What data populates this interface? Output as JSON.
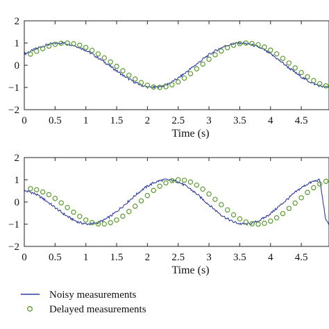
{
  "chart_data": [
    {
      "type": "line",
      "xlabel": "Time (s)",
      "ylabel": "",
      "xlim": [
        0,
        4.95
      ],
      "ylim": [
        -2,
        2
      ],
      "xticks": [
        0,
        0.5,
        1,
        1.5,
        2,
        2.5,
        3,
        3.5,
        4,
        4.5
      ],
      "xtick_labels": [
        "0",
        "0.5",
        "1",
        "1.5",
        "2",
        "2.5",
        "3",
        "3.5",
        "4",
        "4.5"
      ],
      "yticks": [
        -2,
        -1,
        0,
        1,
        2
      ],
      "ytick_labels": [
        "−2",
        "−1",
        "0",
        "1",
        "2"
      ],
      "grid": false,
      "series": [
        {
          "name": "Noisy measurements",
          "style": "line",
          "color": "#2b3a9e",
          "x": [
            0,
            0.1,
            0.2,
            0.3,
            0.4,
            0.5,
            0.6,
            0.7,
            0.8,
            0.9,
            1.0,
            1.1,
            1.2,
            1.3,
            1.4,
            1.5,
            1.6,
            1.7,
            1.8,
            1.9,
            2.0,
            2.1,
            2.2,
            2.3,
            2.4,
            2.5,
            2.6,
            2.7,
            2.8,
            2.9,
            3.0,
            3.1,
            3.2,
            3.3,
            3.4,
            3.5,
            3.6,
            3.7,
            3.8,
            3.9,
            4.0,
            4.1,
            4.2,
            4.3,
            4.4,
            4.5,
            4.6,
            4.7,
            4.8,
            4.9,
            4.95
          ],
          "y": [
            0.5,
            0.63,
            0.75,
            0.86,
            0.94,
            0.99,
            1.0,
            0.97,
            0.9,
            0.8,
            0.67,
            0.51,
            0.33,
            0.15,
            -0.05,
            -0.25,
            -0.45,
            -0.62,
            -0.78,
            -0.9,
            -0.98,
            -1.0,
            -0.97,
            -0.88,
            -0.75,
            -0.58,
            -0.38,
            -0.16,
            0.05,
            0.27,
            0.47,
            0.64,
            0.79,
            0.9,
            0.97,
            1.0,
            0.98,
            0.92,
            0.82,
            0.68,
            0.51,
            0.31,
            0.1,
            -0.12,
            -0.33,
            -0.52,
            -0.69,
            -0.83,
            -0.93,
            -0.99,
            -1.0
          ]
        },
        {
          "name": "Delayed measurements",
          "style": "markers",
          "color": "#5a9a2e",
          "x": [
            0.1,
            0.2,
            0.3,
            0.4,
            0.5,
            0.6,
            0.7,
            0.8,
            0.9,
            1.0,
            1.1,
            1.2,
            1.3,
            1.4,
            1.5,
            1.6,
            1.7,
            1.8,
            1.9,
            2.0,
            2.1,
            2.2,
            2.3,
            2.4,
            2.5,
            2.6,
            2.7,
            2.8,
            2.9,
            3.0,
            3.1,
            3.2,
            3.3,
            3.4,
            3.5,
            3.6,
            3.7,
            3.8,
            3.9,
            4.0,
            4.1,
            4.2,
            4.3,
            4.4,
            4.5,
            4.6,
            4.7,
            4.8,
            4.9
          ],
          "y": [
            0.5,
            0.63,
            0.75,
            0.86,
            0.94,
            0.99,
            1.0,
            0.97,
            0.9,
            0.8,
            0.67,
            0.51,
            0.33,
            0.15,
            -0.05,
            -0.25,
            -0.45,
            -0.62,
            -0.78,
            -0.9,
            -0.98,
            -1.0,
            -0.97,
            -0.88,
            -0.75,
            -0.58,
            -0.38,
            -0.16,
            0.05,
            0.27,
            0.47,
            0.64,
            0.79,
            0.9,
            0.97,
            1.0,
            0.98,
            0.92,
            0.82,
            0.68,
            0.51,
            0.31,
            0.1,
            -0.12,
            -0.33,
            -0.52,
            -0.69,
            -0.83,
            -0.93
          ]
        }
      ]
    },
    {
      "type": "line",
      "xlabel": "Time (s)",
      "ylabel": "",
      "xlim": [
        0,
        4.95
      ],
      "ylim": [
        -2,
        2
      ],
      "xticks": [
        0,
        0.5,
        1,
        1.5,
        2,
        2.5,
        3,
        3.5,
        4,
        4.5
      ],
      "xtick_labels": [
        "0",
        "0.5",
        "1",
        "1.5",
        "2",
        "2.5",
        "3",
        "3.5",
        "4",
        "4.5"
      ],
      "yticks": [
        -2,
        -1,
        0,
        1,
        2
      ],
      "ytick_labels": [
        "−2",
        "−1",
        "0",
        "1",
        "2"
      ],
      "grid": false,
      "series": [
        {
          "name": "Noisy measurements",
          "style": "line",
          "color": "#2b3a9e",
          "x": [
            0,
            0.1,
            0.2,
            0.3,
            0.4,
            0.5,
            0.6,
            0.7,
            0.8,
            0.9,
            1.0,
            1.1,
            1.2,
            1.3,
            1.4,
            1.5,
            1.6,
            1.7,
            1.8,
            1.9,
            2.0,
            2.1,
            2.2,
            2.3,
            2.4,
            2.5,
            2.6,
            2.7,
            2.8,
            2.9,
            3.0,
            3.1,
            3.2,
            3.3,
            3.4,
            3.5,
            3.6,
            3.7,
            3.8,
            3.9,
            4.0,
            4.1,
            4.2,
            4.3,
            4.4,
            4.5,
            4.6,
            4.7,
            4.8,
            4.9,
            4.95
          ],
          "y": [
            0.5,
            0.45,
            0.33,
            0.16,
            -0.04,
            -0.25,
            -0.46,
            -0.65,
            -0.81,
            -0.93,
            -0.99,
            -0.99,
            -0.93,
            -0.81,
            -0.64,
            -0.43,
            -0.19,
            0.05,
            0.29,
            0.52,
            0.71,
            0.86,
            0.96,
            1.0,
            0.98,
            0.9,
            0.76,
            0.58,
            0.36,
            0.12,
            -0.12,
            -0.36,
            -0.58,
            -0.76,
            -0.9,
            -0.98,
            -1.0,
            -0.96,
            -0.86,
            -0.71,
            -0.52,
            -0.29,
            -0.05,
            0.19,
            0.43,
            0.64,
            0.81,
            0.93,
            0.99,
            -0.85,
            -1.0
          ]
        },
        {
          "name": "Delayed measurements",
          "style": "markers",
          "color": "#5a9a2e",
          "x": [
            0.1,
            0.2,
            0.3,
            0.4,
            0.5,
            0.6,
            0.7,
            0.8,
            0.9,
            1.0,
            1.1,
            1.2,
            1.3,
            1.4,
            1.5,
            1.6,
            1.7,
            1.8,
            1.9,
            2.0,
            2.1,
            2.2,
            2.3,
            2.4,
            2.5,
            2.6,
            2.7,
            2.8,
            2.9,
            3.0,
            3.1,
            3.2,
            3.3,
            3.4,
            3.5,
            3.6,
            3.7,
            3.8,
            3.9,
            4.0,
            4.1,
            4.2,
            4.3,
            4.4,
            4.5,
            4.6,
            4.7,
            4.8,
            4.9
          ],
          "y": [
            0.6,
            0.55,
            0.45,
            0.33,
            0.16,
            -0.04,
            -0.25,
            -0.46,
            -0.65,
            -0.81,
            -0.93,
            -0.99,
            -0.99,
            -0.93,
            -0.81,
            -0.64,
            -0.43,
            -0.19,
            0.05,
            0.29,
            0.52,
            0.71,
            0.86,
            0.96,
            1.0,
            0.98,
            0.9,
            0.76,
            0.58,
            0.36,
            0.12,
            -0.12,
            -0.36,
            -0.58,
            -0.76,
            -0.9,
            -0.98,
            -1.0,
            -0.96,
            -0.86,
            -0.71,
            -0.52,
            -0.29,
            -0.05,
            0.19,
            0.43,
            0.64,
            0.81,
            0.93
          ]
        }
      ]
    }
  ],
  "legend": {
    "placement": "bottom-left",
    "entries": [
      {
        "label": "Noisy measurements",
        "marker": "line",
        "color": "#2b3a9e"
      },
      {
        "label": "Delayed measurements",
        "marker": "circle",
        "color": "#5a9a2e"
      }
    ]
  }
}
